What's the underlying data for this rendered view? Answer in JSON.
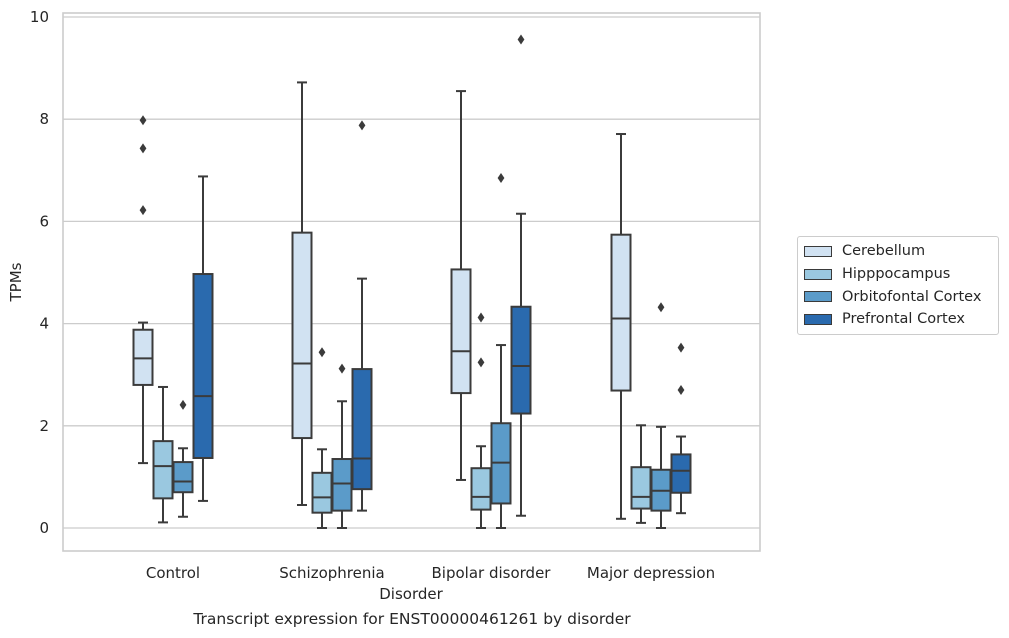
{
  "chart_data": {
    "type": "box",
    "title": "Transcript expression for ENST00000461261 by disorder",
    "xlabel": "Disorder",
    "ylabel": "TPMs",
    "ylim": [
      -0.45,
      10.05
    ],
    "yticks": [
      0,
      2,
      4,
      6,
      8,
      10
    ],
    "grid": true,
    "legend_position": "right",
    "categories": [
      "Control",
      "Schizophrenia",
      "Bipolar disorder",
      "Major depression"
    ],
    "series": [
      {
        "name": "Cerebellum",
        "color": "#d1e2f2",
        "boxes": [
          {
            "whisker_low": 1.27,
            "q1": 2.8,
            "median": 3.32,
            "q3": 3.88,
            "whisker_high": 4.02,
            "outliers": [
              6.22,
              7.43,
              7.98
            ]
          },
          {
            "whisker_low": 0.45,
            "q1": 1.76,
            "median": 3.22,
            "q3": 5.78,
            "whisker_high": 8.72,
            "outliers": []
          },
          {
            "whisker_low": 0.94,
            "q1": 2.64,
            "median": 3.46,
            "q3": 5.06,
            "whisker_high": 8.55,
            "outliers": []
          },
          {
            "whisker_low": 0.18,
            "q1": 2.69,
            "median": 4.1,
            "q3": 5.74,
            "whisker_high": 7.71,
            "outliers": []
          }
        ]
      },
      {
        "name": "Hipppocampus",
        "color": "#9ac8e0",
        "boxes": [
          {
            "whisker_low": 0.11,
            "q1": 0.58,
            "median": 1.21,
            "q3": 1.7,
            "whisker_high": 2.76,
            "outliers": []
          },
          {
            "whisker_low": 0.0,
            "q1": 0.3,
            "median": 0.6,
            "q3": 1.08,
            "whisker_high": 1.54,
            "outliers": [
              3.44
            ]
          },
          {
            "whisker_low": 0.0,
            "q1": 0.36,
            "median": 0.61,
            "q3": 1.17,
            "whisker_high": 1.6,
            "outliers": [
              3.24,
              4.12
            ]
          },
          {
            "whisker_low": 0.1,
            "q1": 0.38,
            "median": 0.61,
            "q3": 1.19,
            "whisker_high": 2.01,
            "outliers": []
          }
        ]
      },
      {
        "name": "Orbitofontal Cortex",
        "color": "#5b9bc9",
        "boxes": [
          {
            "whisker_low": 0.22,
            "q1": 0.7,
            "median": 0.91,
            "q3": 1.29,
            "whisker_high": 1.56,
            "outliers": [
              2.41
            ]
          },
          {
            "whisker_low": 0.0,
            "q1": 0.34,
            "median": 0.87,
            "q3": 1.35,
            "whisker_high": 2.48,
            "outliers": [
              3.12
            ]
          },
          {
            "whisker_low": 0.0,
            "q1": 0.48,
            "median": 1.28,
            "q3": 2.05,
            "whisker_high": 3.58,
            "outliers": [
              6.85
            ]
          },
          {
            "whisker_low": 0.0,
            "q1": 0.34,
            "median": 0.73,
            "q3": 1.14,
            "whisker_high": 1.98,
            "outliers": [
              4.32
            ]
          }
        ]
      },
      {
        "name": "Prefrontal Cortex",
        "color": "#2a6aae",
        "boxes": [
          {
            "whisker_low": 0.53,
            "q1": 1.37,
            "median": 2.58,
            "q3": 4.97,
            "whisker_high": 6.88,
            "outliers": []
          },
          {
            "whisker_low": 0.34,
            "q1": 0.76,
            "median": 1.36,
            "q3": 3.11,
            "whisker_high": 4.88,
            "outliers": [
              7.88
            ]
          },
          {
            "whisker_low": 0.24,
            "q1": 2.24,
            "median": 3.17,
            "q3": 4.33,
            "whisker_high": 6.15,
            "outliers": [
              9.56
            ]
          },
          {
            "whisker_low": 0.29,
            "q1": 0.69,
            "median": 1.12,
            "q3": 1.44,
            "whisker_high": 1.79,
            "outliers": [
              2.7,
              3.53
            ]
          }
        ]
      }
    ]
  }
}
